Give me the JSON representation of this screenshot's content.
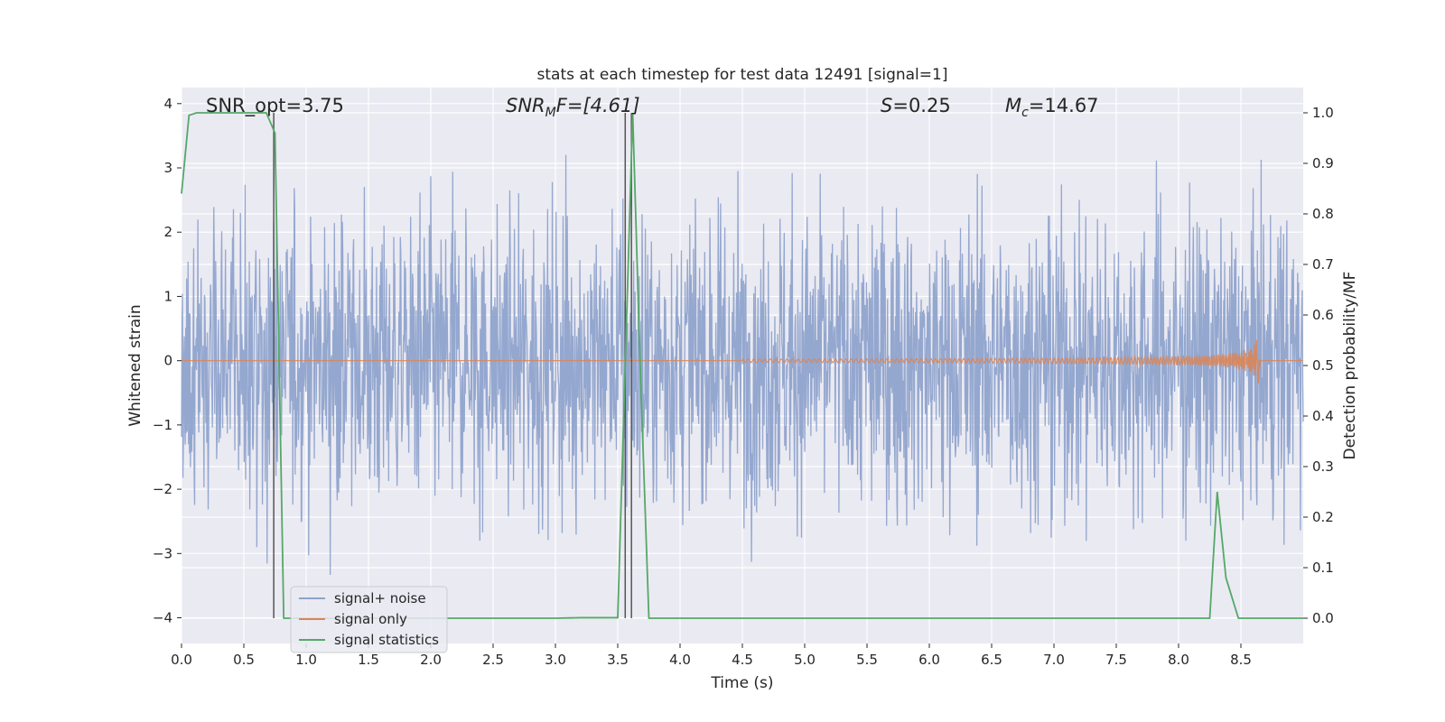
{
  "chart_data": {
    "type": "line",
    "title": "stats at each timestep for test data 12491 [signal=1]",
    "xlabel": "Time (s)",
    "ylabel": "Whitened strain",
    "y2label": "Detection probability/MF",
    "xlim": [
      0.0,
      9.0
    ],
    "ylim": [
      -4.4,
      4.25
    ],
    "y2lim": [
      -0.05,
      1.05
    ],
    "xticks": [
      0.0,
      0.5,
      1.0,
      1.5,
      2.0,
      2.5,
      3.0,
      3.5,
      4.0,
      4.5,
      5.0,
      5.5,
      6.0,
      6.5,
      7.0,
      7.5,
      8.0,
      8.5
    ],
    "xtick_labels": [
      "0.0",
      "0.5",
      "1.0",
      "1.5",
      "2.0",
      "2.5",
      "3.0",
      "3.5",
      "4.0",
      "4.5",
      "5.0",
      "5.5",
      "6.0",
      "6.5",
      "7.0",
      "7.5",
      "8.0",
      "8.5"
    ],
    "yticks": [
      -4,
      -3,
      -2,
      -1,
      0,
      1,
      2,
      3,
      4
    ],
    "ytick_labels": [
      "−4",
      "−3",
      "−2",
      "−1",
      "0",
      "1",
      "2",
      "3",
      "4"
    ],
    "y2ticks": [
      0.0,
      0.1,
      0.2,
      0.3,
      0.4,
      0.5,
      0.6,
      0.7,
      0.8,
      0.9,
      1.0
    ],
    "y2tick_labels": [
      "0.0",
      "0.1",
      "0.2",
      "0.3",
      "0.4",
      "0.5",
      "0.6",
      "0.7",
      "0.8",
      "0.9",
      "1.0"
    ],
    "grid": true,
    "legend_position": "lower-left",
    "series": [
      {
        "name": "signal+ noise",
        "color": "#8fa3cc",
        "axis": "left",
        "noise_std": 1.0,
        "noise_peak_max": 3.9,
        "noise_peak_min": -3.9
      },
      {
        "name": "signal only",
        "color": "#dd8452",
        "axis": "left",
        "chirp_start_s": 4.5,
        "chirp_merger_s": 8.65,
        "chirp_peak_amplitude": 0.55
      },
      {
        "name": "signal statistics",
        "color": "#55a868",
        "axis": "right",
        "x": [
          0.0,
          0.06,
          0.12,
          0.5,
          0.68,
          0.75,
          0.82,
          0.9,
          1.5,
          2.5,
          3.0,
          3.2,
          3.5,
          3.56,
          3.62,
          3.68,
          3.75,
          4.0,
          5.0,
          6.0,
          7.0,
          8.0,
          8.25,
          8.31,
          8.38,
          8.48,
          8.6,
          9.0
        ],
        "values": [
          0.84,
          0.995,
          1.0,
          1.0,
          1.0,
          0.96,
          0.0,
          0.0,
          0.0,
          0.0,
          0.0,
          0.001,
          0.001,
          0.5,
          1.0,
          0.5,
          0.0,
          0.0,
          0.0,
          0.0,
          0.0,
          0.0,
          0.0,
          0.25,
          0.08,
          0.0,
          0.0,
          0.0
        ]
      }
    ],
    "vlines": [
      0.74,
      3.56,
      3.61
    ],
    "vline_color": "#555555",
    "annotations": [
      {
        "text": "SNR_opt=3.75",
        "x": 0.2
      },
      {
        "text_main": "SNR",
        "text_sub": "M",
        "text_tail": "F=[4.61]",
        "x": 2.6
      },
      {
        "text_main": "S",
        "text_tail": "=0.25",
        "x": 5.6
      },
      {
        "text_main": "M",
        "text_sub": "c",
        "text_tail": "=14.67",
        "x": 6.6
      }
    ]
  }
}
